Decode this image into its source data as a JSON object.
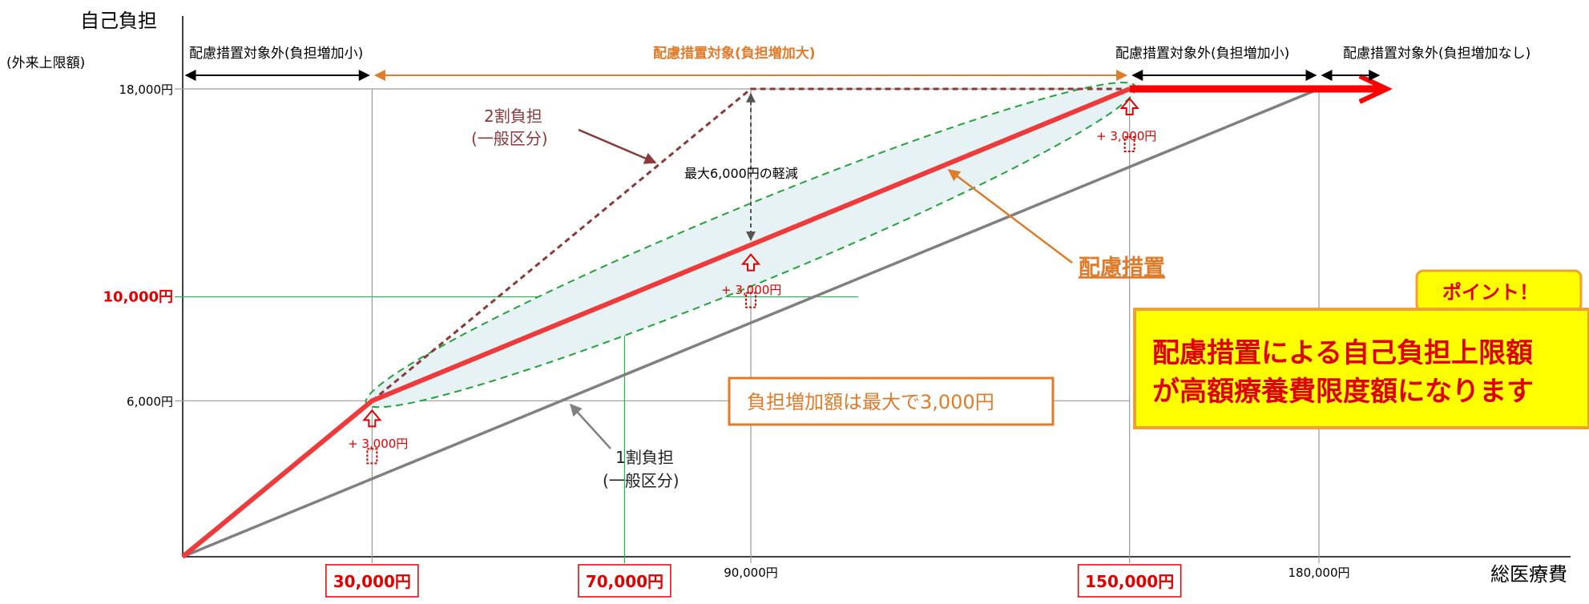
{
  "chart_data": {
    "type": "line",
    "y_axis_title": "自己負担",
    "y_axis_subtitle": "(外来上限額)",
    "x_axis_title": "総医療費",
    "y_ticks": [
      {
        "value": 18000,
        "label": "18,000円",
        "style": "normal"
      },
      {
        "value": 10000,
        "label": "10,000円",
        "style": "red"
      },
      {
        "value": 6000,
        "label": "6,000円",
        "style": "normal"
      }
    ],
    "x_ticks": [
      {
        "value": 30000,
        "label": "30,000円",
        "style": "boxed"
      },
      {
        "value": 70000,
        "label": "70,000円",
        "style": "boxed"
      },
      {
        "value": 90000,
        "label": "90,000円",
        "style": "normal"
      },
      {
        "value": 150000,
        "label": "150,000円",
        "style": "boxed"
      },
      {
        "value": 180000,
        "label": "180,000円",
        "style": "normal"
      }
    ],
    "series": [
      {
        "name": "2割負担(一般区分)",
        "points": [
          [
            30000,
            6000
          ],
          [
            90000,
            18000
          ],
          [
            150000,
            18000
          ]
        ]
      },
      {
        "name": "1割負担(一般区分)",
        "points": [
          [
            0,
            0
          ],
          [
            180000,
            18000
          ]
        ]
      },
      {
        "name": "配慮措置",
        "points": [
          [
            0,
            0
          ],
          [
            30000,
            6000
          ],
          [
            150000,
            18000
          ],
          [
            180000,
            18000
          ],
          [
            190000,
            18000
          ]
        ]
      }
    ],
    "ranges": [
      {
        "from": 0,
        "to": 30000,
        "label": "配慮措置対象外(負担増加小)",
        "color": "#000000"
      },
      {
        "from": 30000,
        "to": 150000,
        "label": "配慮措置対象(負担増加大)",
        "color": "#e07b2a"
      },
      {
        "from": 150000,
        "to": 180000,
        "label": "配慮措置対象外(負担増加小)",
        "color": "#000000"
      },
      {
        "from": 180000,
        "to": 190000,
        "label": "配慮措置対象外(負担増加なし)",
        "color": "#000000"
      }
    ],
    "annotations": {
      "two_wari_line1": "2割負担",
      "two_wari_line2": "(一般区分)",
      "one_wari_line1": "1割負担",
      "one_wari_line2": "(一般区分)",
      "max_reduction": "最大6,000円の軽減",
      "plus_3000": "+ 3,000円",
      "preferential": "配慮措置",
      "increase_box": "負担増加額は最大で3,000円",
      "point_tag": "ポイント！",
      "point_line1": "配慮措置による自己負担上限額",
      "point_line2": "が高額療養費限度額になります"
    },
    "colors": {
      "preferential": "#ee3a3a",
      "two_wari": "#8b3a3a",
      "one_wari": "#808080",
      "range_orange": "#e07b2a",
      "ellipse": "#22a33a",
      "ellipse_fill": "#e6f2f3",
      "green_guide": "#2ab04a",
      "point_bg": "#ffff00",
      "point_border": "#f0a030"
    }
  }
}
